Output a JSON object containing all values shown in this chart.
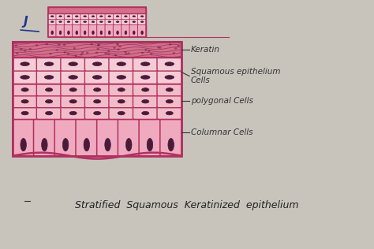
{
  "bg_color": "#c8c4bc",
  "paper_color": "#e8e4dc",
  "title": "Stratified  Squamous  Keratinized  epithelium",
  "title_fontsize": 9,
  "labels": [
    "Keratin",
    "Squamous epithelium\nCells",
    "polygonal Cells",
    "Columnar Cells"
  ],
  "keratin_color": "#c8587a",
  "keratin_fill": "#d4708a",
  "squamous_color": "#e898a8",
  "squamous_fill": "#f5ccd5",
  "polygonal_fill": "#f2bbc8",
  "columnar_fill": "#f0aabf",
  "cell_border_color": "#b03060",
  "nucleus_color": "#4a1a3a",
  "line_color": "#333333"
}
